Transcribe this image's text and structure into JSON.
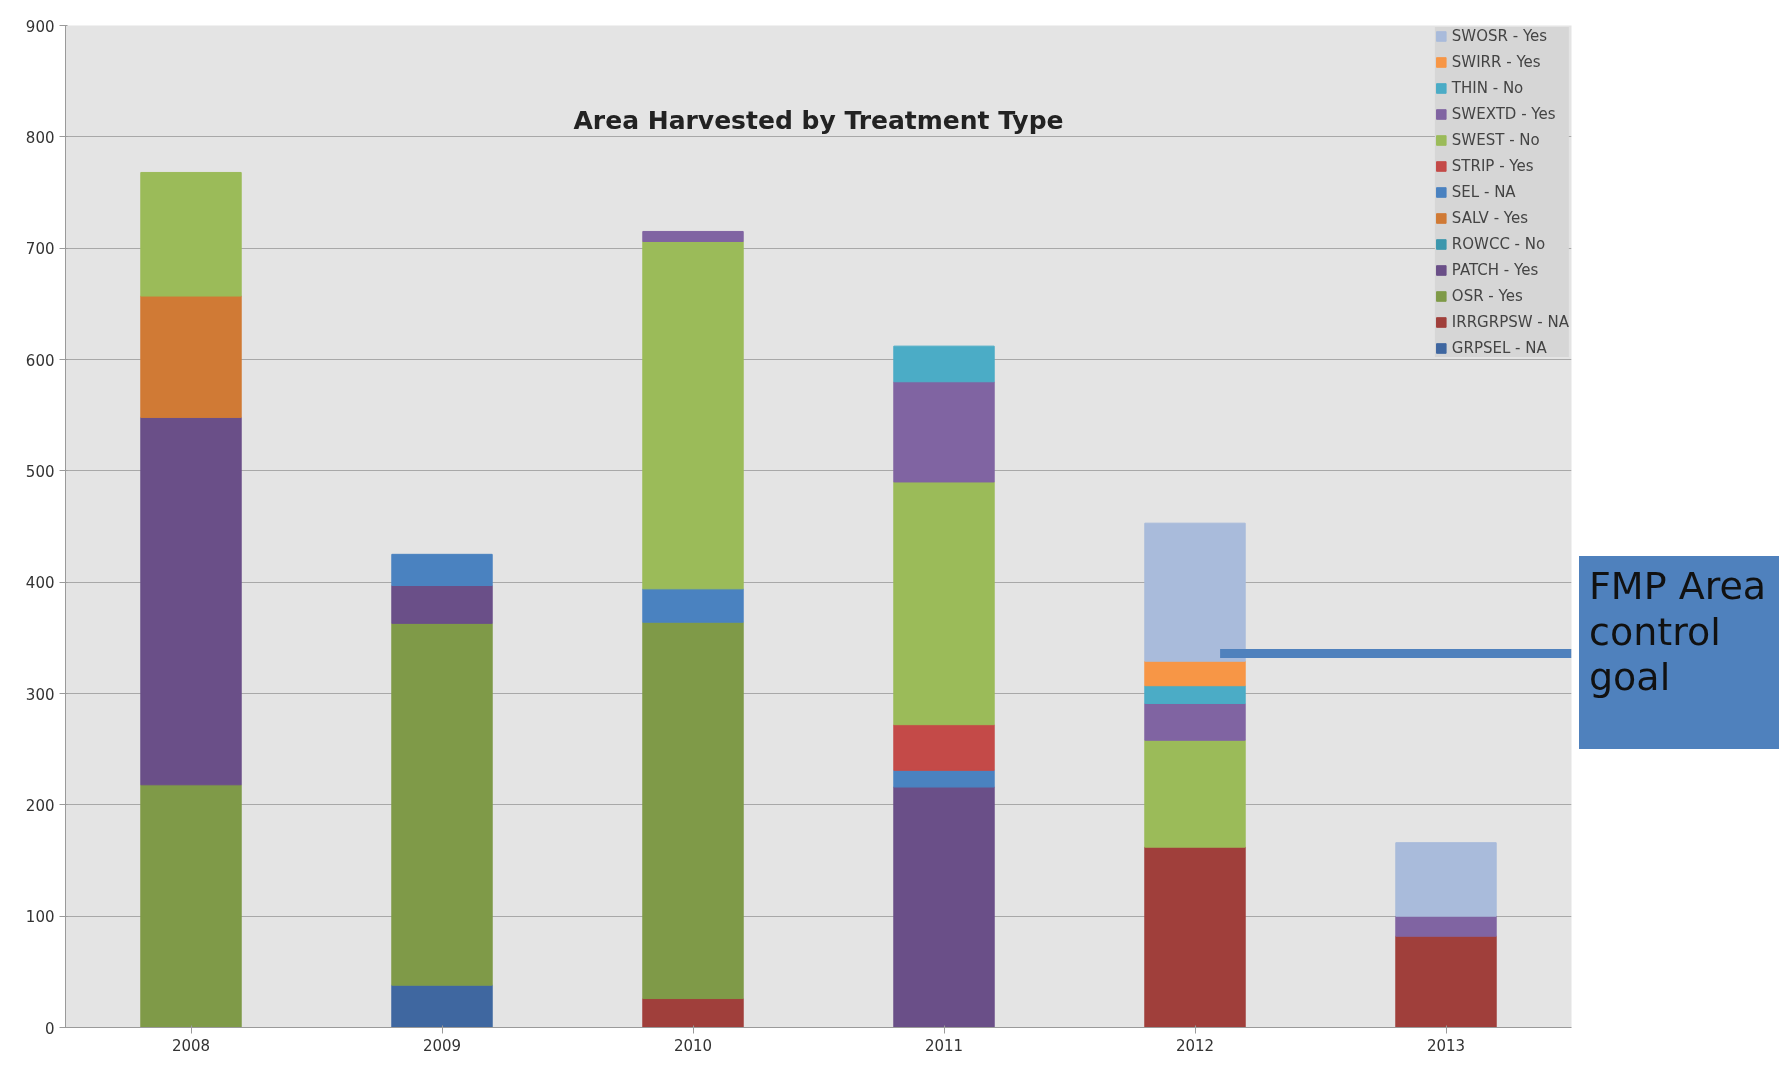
{
  "chart_data": {
    "type": "bar",
    "title": "Area Harvested by Treatment Type",
    "stacked": true,
    "categories": [
      "2008",
      "2009",
      "2010",
      "2011",
      "2012",
      "2013"
    ],
    "series": [
      {
        "name": "GRPSEL - NA",
        "color": "#3f67a0",
        "values": [
          null,
          38,
          null,
          null,
          null,
          null
        ]
      },
      {
        "name": "IRRGRPSW - NA",
        "color": "#a03f3b",
        "values": [
          null,
          null,
          26,
          null,
          162,
          82
        ]
      },
      {
        "name": "OSR - Yes",
        "color": "#7f9a48",
        "values": [
          218,
          325,
          338,
          null,
          null,
          null
        ]
      },
      {
        "name": "PATCH - Yes",
        "color": "#6a4f88",
        "values": [
          330,
          34,
          null,
          216,
          null,
          null
        ]
      },
      {
        "name": "ROWCC - No",
        "color": "#3c97ad",
        "values": [
          null,
          null,
          null,
          null,
          null,
          null
        ]
      },
      {
        "name": "SALV - Yes",
        "color": "#d07a35",
        "values": [
          109,
          null,
          null,
          null,
          null,
          null
        ]
      },
      {
        "name": "SEL - NA",
        "color": "#4a82c0",
        "values": [
          null,
          28,
          30,
          15,
          null,
          null
        ]
      },
      {
        "name": "STRIP - Yes",
        "color": "#c44a48",
        "values": [
          null,
          null,
          null,
          41,
          null,
          null
        ]
      },
      {
        "name": "SWEST - No",
        "color": "#9bbb59",
        "values": [
          111,
          null,
          312,
          218,
          96,
          null
        ]
      },
      {
        "name": "SWEXTD - Yes",
        "color": "#8064a2",
        "values": [
          null,
          null,
          9,
          90,
          33,
          18
        ]
      },
      {
        "name": "THIN - No",
        "color": "#4bacc6",
        "values": [
          null,
          null,
          null,
          32,
          16,
          null
        ]
      },
      {
        "name": "SWIRR - Yes",
        "color": "#f79646",
        "values": [
          null,
          null,
          null,
          null,
          22,
          null
        ]
      },
      {
        "name": "SWOSR - Yes",
        "color": "#a9bbdb",
        "values": [
          null,
          null,
          null,
          null,
          124,
          66
        ]
      }
    ],
    "ylim": [
      0,
      900
    ],
    "yticks": [
      0,
      100,
      200,
      300,
      400,
      500,
      600,
      700,
      800,
      900
    ],
    "grid": "y",
    "legend": "top right",
    "ref_lines": [
      {
        "axis": "y",
        "value": 336,
        "label": "FMP Area control goal",
        "color": "#4f81bd"
      }
    ]
  }
}
